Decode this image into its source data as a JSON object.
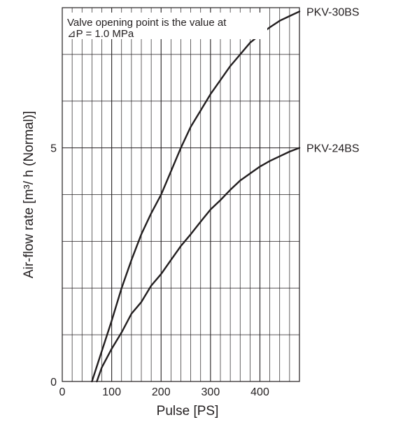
{
  "chart_data": {
    "type": "line",
    "title": "",
    "xlabel": "Pulse [PS]",
    "ylabel": "Air-flow rate [m³/ h (Normal)]",
    "xlim": [
      0,
      480
    ],
    "ylim": [
      0,
      8
    ],
    "x_ticks": [
      0,
      100,
      200,
      300,
      400
    ],
    "y_ticks": [
      0,
      5
    ],
    "grid": true,
    "minor_x_step": 20,
    "minor_y_step": 1,
    "annotation_lines": [
      "Valve opening point is the value at",
      "⊿P = 1.0 MPa"
    ],
    "series": [
      {
        "name": "PKV-30BS",
        "x": [
          60,
          80,
          100,
          120,
          140,
          160,
          180,
          200,
          220,
          240,
          260,
          280,
          300,
          320,
          340,
          360,
          380,
          400,
          420,
          440,
          460,
          480
        ],
        "y": [
          0,
          0.65,
          1.3,
          2.0,
          2.6,
          3.15,
          3.6,
          4.0,
          4.5,
          5.0,
          5.45,
          5.8,
          6.15,
          6.45,
          6.75,
          7.0,
          7.25,
          7.42,
          7.58,
          7.72,
          7.82,
          7.92
        ]
      },
      {
        "name": "PKV-24BS",
        "x": [
          70,
          80,
          100,
          120,
          140,
          160,
          180,
          200,
          220,
          240,
          260,
          280,
          300,
          320,
          340,
          360,
          380,
          400,
          420,
          440,
          460,
          480
        ],
        "y": [
          0,
          0.3,
          0.7,
          1.05,
          1.45,
          1.7,
          2.05,
          2.3,
          2.6,
          2.9,
          3.15,
          3.42,
          3.68,
          3.88,
          4.1,
          4.3,
          4.45,
          4.6,
          4.72,
          4.82,
          4.92,
          5.0
        ]
      }
    ]
  }
}
